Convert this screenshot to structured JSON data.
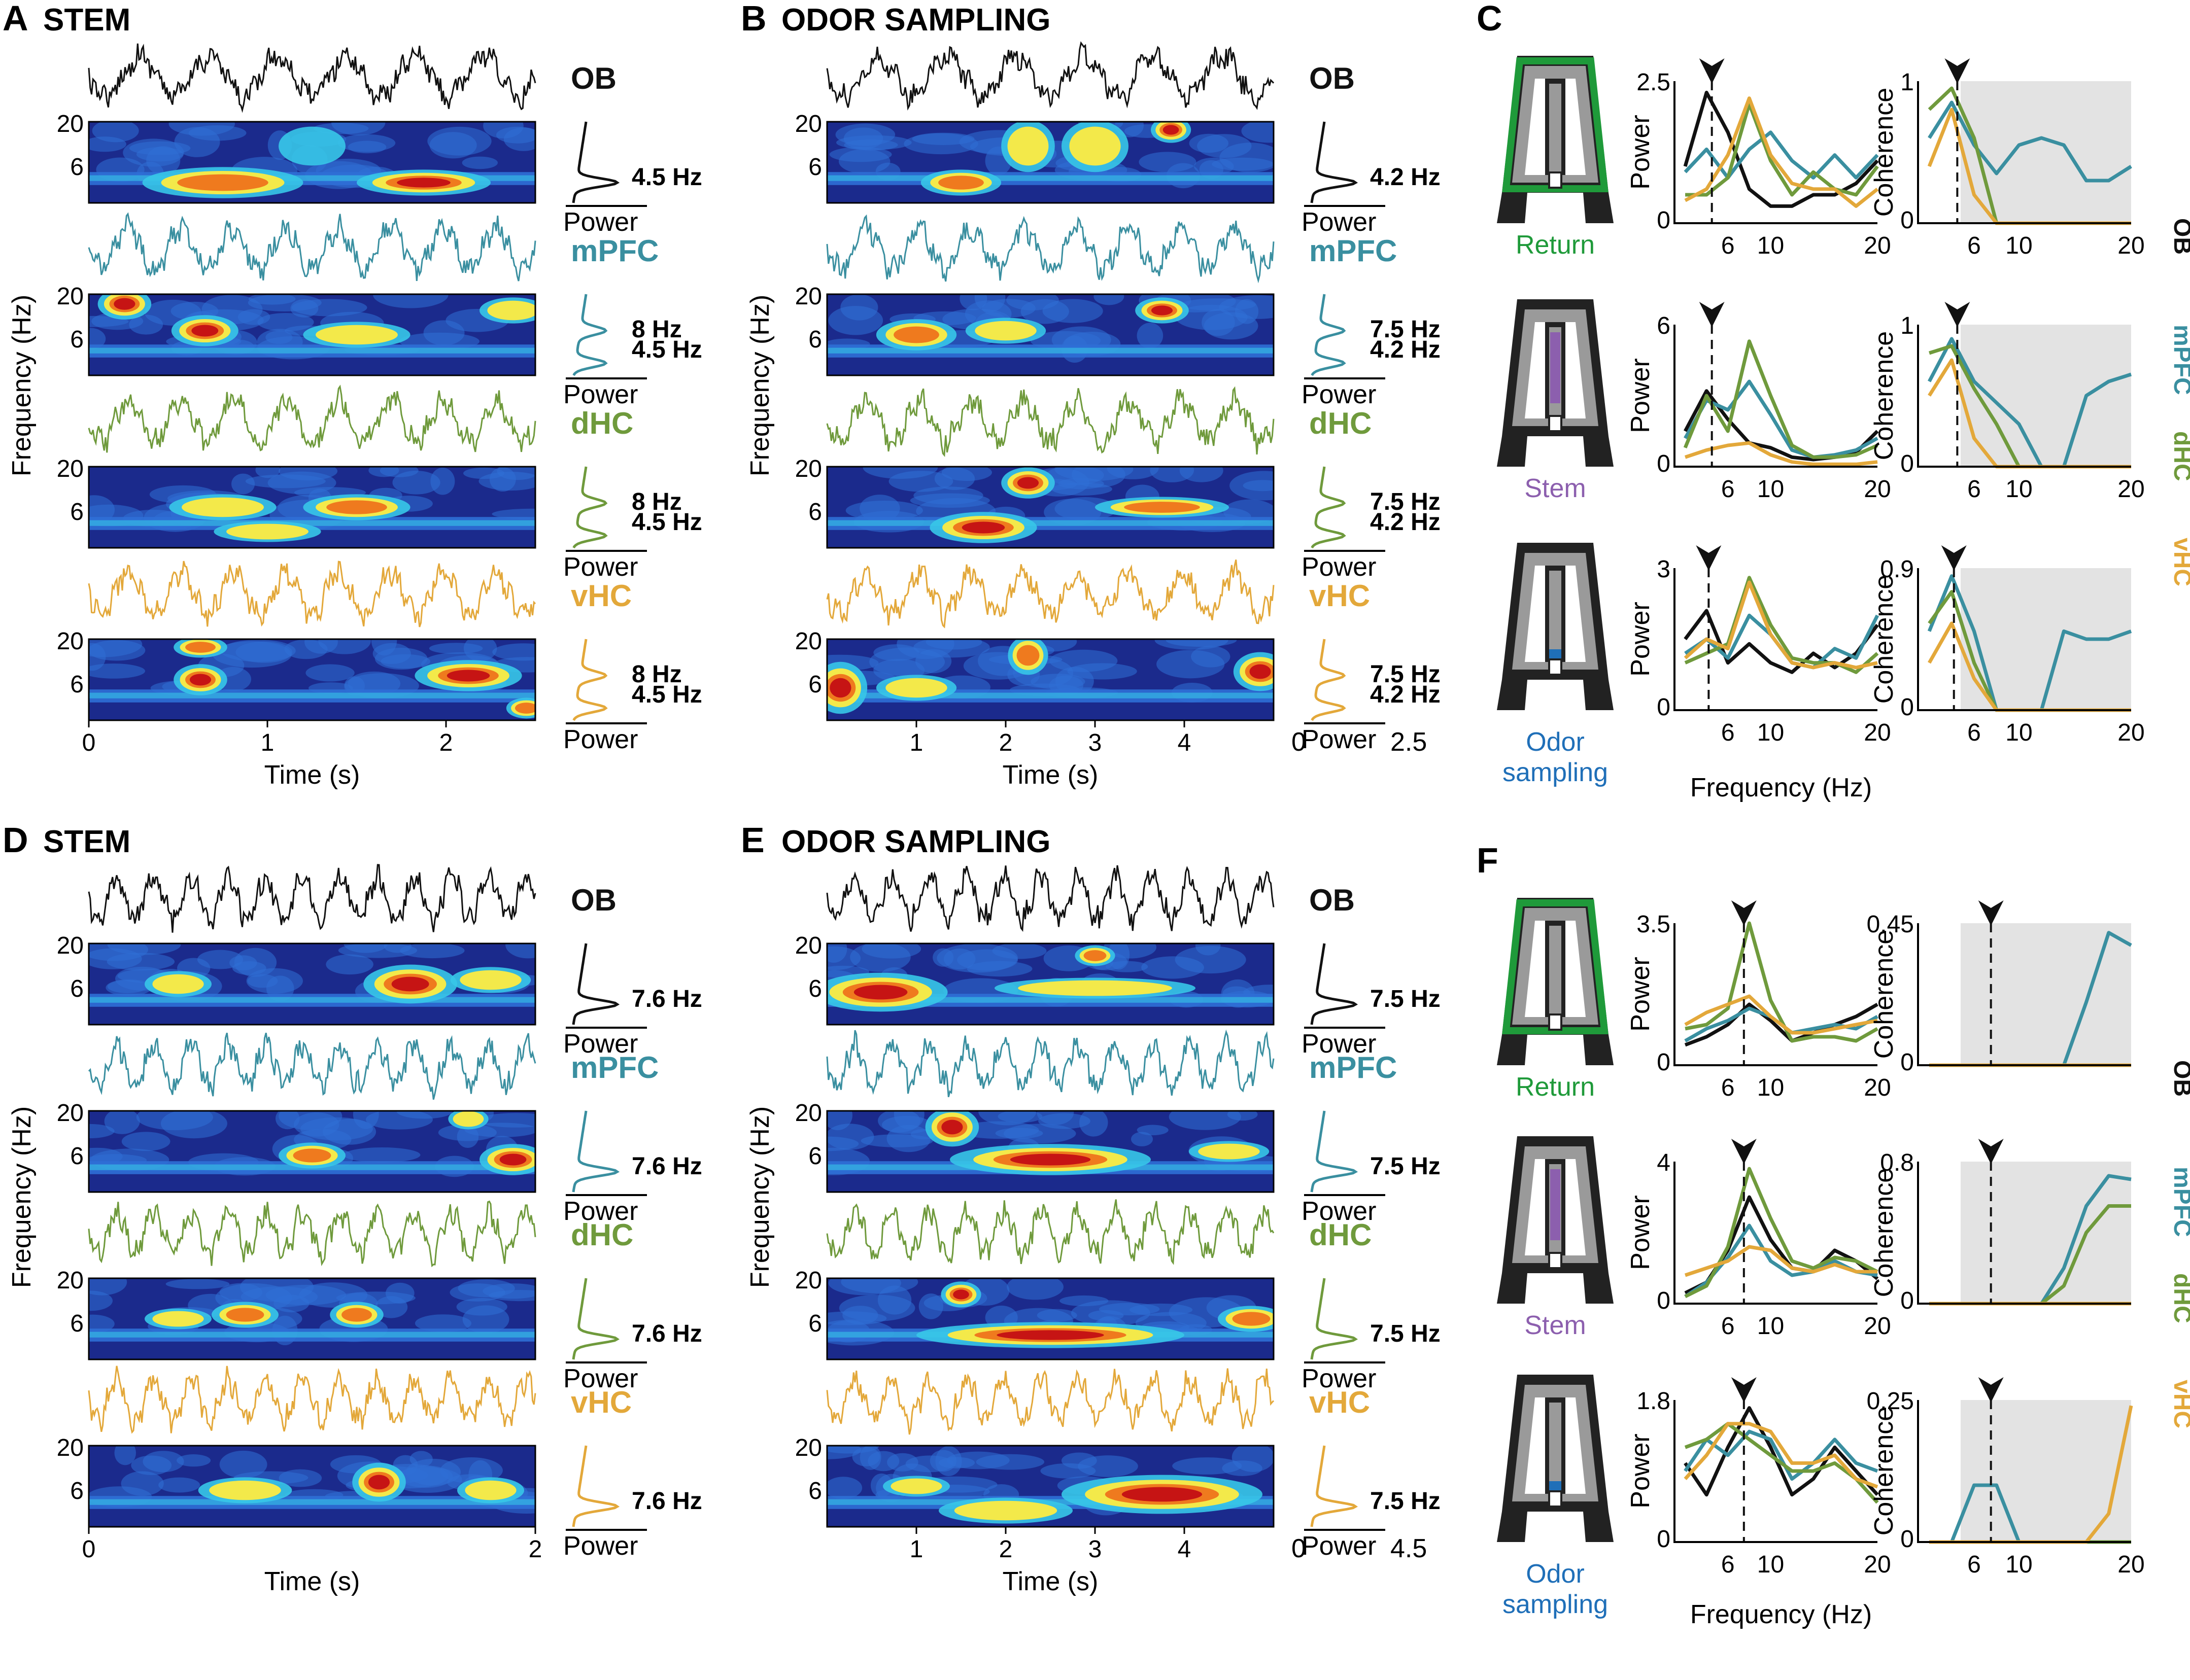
{
  "colors": {
    "OB": "#111111",
    "mPFC": "#3a8fa0",
    "dHC": "#6f9a3c",
    "vHC": "#e3a83a",
    "return_arm": "#1f9a3a",
    "stem_arm": "#8c5fae",
    "port": "#1f6fb8",
    "shade": "#e3e3e3",
    "maze": "#222222",
    "maze_inner": "#9a9a9a",
    "colormap": [
      "#1b2a8c",
      "#2f6fd6",
      "#37c7e8",
      "#f3e94a",
      "#ef7a1e",
      "#c61414",
      "#7a0000"
    ]
  },
  "panels": {
    "A": {
      "letter": "A",
      "title": "STEM",
      "freq_label": "Frequency (Hz)",
      "time_label": "Time (s)",
      "x_ticks": [
        "0",
        "1",
        "2"
      ],
      "y_ticks": [
        "20",
        "6"
      ],
      "regions": [
        "OB",
        "mPFC",
        "dHC",
        "vHC"
      ],
      "peaks": [
        [
          "4.5 Hz"
        ],
        [
          "8 Hz",
          "4.5 Hz"
        ],
        [
          "8 Hz",
          "4.5 Hz"
        ],
        [
          "8 Hz",
          "4.5 Hz"
        ]
      ],
      "power_label": "Power"
    },
    "B": {
      "letter": "B",
      "title": "ODOR SAMPLING",
      "freq_label": "Frequency (Hz)",
      "time_label": "Time (s)",
      "x_ticks": [
        "1",
        "2",
        "3",
        "4"
      ],
      "y_ticks": [
        "20",
        "6"
      ],
      "regions": [
        "OB",
        "mPFC",
        "dHC",
        "vHC"
      ],
      "peaks": [
        [
          "4.2 Hz"
        ],
        [
          "7.5 Hz",
          "4.2 Hz"
        ],
        [
          "7.5 Hz",
          "4.2 Hz"
        ],
        [
          "7.5 Hz",
          "4.2 Hz"
        ]
      ],
      "power_label": "Power",
      "power_axis": [
        "0",
        "2.5"
      ]
    },
    "D": {
      "letter": "D",
      "title": "STEM",
      "freq_label": "Frequency (Hz)",
      "time_label": "Time (s)",
      "x_ticks": [
        "0",
        "2"
      ],
      "y_ticks": [
        "20",
        "6"
      ],
      "regions": [
        "OB",
        "mPFC",
        "dHC",
        "vHC"
      ],
      "peaks": [
        [
          "7.6 Hz"
        ],
        [
          "7.6 Hz"
        ],
        [
          "7.6 Hz"
        ],
        [
          "7.6 Hz"
        ]
      ],
      "power_label": "Power"
    },
    "E": {
      "letter": "E",
      "title": "ODOR SAMPLING",
      "freq_label": "Frequency (Hz)",
      "time_label": "Time (s)",
      "x_ticks": [
        "1",
        "2",
        "3",
        "4"
      ],
      "y_ticks": [
        "20",
        "6"
      ],
      "regions": [
        "OB",
        "mPFC",
        "dHC",
        "vHC"
      ],
      "peaks": [
        [
          "7.5 Hz"
        ],
        [
          "7.5 Hz"
        ],
        [
          "7.5 Hz"
        ],
        [
          "7.5 Hz"
        ]
      ],
      "power_label": "Power",
      "power_axis": [
        "0",
        "4.5"
      ]
    },
    "C": {
      "letter": "C",
      "conditions": [
        "Return",
        "Stem",
        "Odor sampling"
      ],
      "power_ylabel": "Power",
      "coh_ylabel": "Coherence",
      "freq_xlabel": "Frequency (Hz)",
      "x_ticks": [
        "6",
        "10",
        "20"
      ],
      "power_ymax": [
        "2.5",
        "6",
        "3"
      ],
      "coh_ymax": [
        "1",
        "1",
        "0.9"
      ],
      "legend": [
        "OB",
        "mPFC",
        "dHC",
        "vHC"
      ]
    },
    "F": {
      "letter": "F",
      "conditions": [
        "Return",
        "Stem",
        "Odor sampling"
      ],
      "power_ylabel": "Power",
      "coh_ylabel": "Coherence",
      "freq_xlabel": "Frequency (Hz)",
      "x_ticks": [
        "6",
        "10",
        "20"
      ],
      "power_ymax": [
        "3.5",
        "4",
        "1.8"
      ],
      "coh_ymax": [
        "0.45",
        "0.8",
        "0.25"
      ],
      "legend": [
        "OB",
        "mPFC",
        "dHC",
        "vHC"
      ]
    }
  },
  "chart_data": [
    {
      "type": "line",
      "panel": "C",
      "row": "Return",
      "measure": "power",
      "x": [
        2,
        4,
        6,
        8,
        10,
        12,
        14,
        16,
        18,
        20
      ],
      "ylim": [
        0,
        2.5
      ],
      "series": [
        {
          "name": "OB",
          "values": [
            1.0,
            2.3,
            1.6,
            0.6,
            0.3,
            0.3,
            0.5,
            0.5,
            0.7,
            1.1
          ]
        },
        {
          "name": "mPFC",
          "values": [
            0.9,
            1.3,
            0.8,
            1.3,
            1.6,
            1.1,
            0.8,
            1.2,
            0.8,
            1.2
          ]
        },
        {
          "name": "dHC",
          "values": [
            0.5,
            0.5,
            0.8,
            2.1,
            1.1,
            0.5,
            0.9,
            0.6,
            0.5,
            1.0
          ]
        },
        {
          "name": "vHC",
          "values": [
            0.4,
            0.6,
            1.2,
            2.2,
            1.2,
            0.7,
            0.6,
            0.6,
            0.3,
            0.6
          ]
        }
      ],
      "marker_x": 4.5
    },
    {
      "type": "line",
      "panel": "C",
      "row": "Return",
      "measure": "coherence",
      "x": [
        2,
        4,
        6,
        8,
        10,
        12,
        14,
        16,
        18,
        20
      ],
      "ylim": [
        0,
        1
      ],
      "series": [
        {
          "name": "mPFC",
          "values": [
            0.6,
            0.85,
            0.55,
            0.35,
            0.55,
            0.6,
            0.55,
            0.3,
            0.3,
            0.4
          ]
        },
        {
          "name": "dHC",
          "values": [
            0.8,
            0.95,
            0.6,
            0.0,
            0.0,
            0.0,
            0.0,
            0.0,
            0.0,
            0.0
          ]
        },
        {
          "name": "vHC",
          "values": [
            0.4,
            0.8,
            0.2,
            0.0,
            0.0,
            0.0,
            0.0,
            0.0,
            0.0,
            0.0
          ]
        }
      ],
      "marker_x": 4.5
    },
    {
      "type": "line",
      "panel": "C",
      "row": "Stem",
      "measure": "power",
      "x": [
        2,
        4,
        6,
        8,
        10,
        12,
        14,
        16,
        18,
        20
      ],
      "ylim": [
        0,
        6
      ],
      "series": [
        {
          "name": "OB",
          "values": [
            1.5,
            3.2,
            2.0,
            1.0,
            0.8,
            0.4,
            0.3,
            0.4,
            0.6,
            1.5
          ]
        },
        {
          "name": "mPFC",
          "values": [
            1.2,
            2.8,
            2.4,
            3.6,
            2.2,
            0.7,
            0.4,
            0.5,
            0.7,
            1.2
          ]
        },
        {
          "name": "dHC",
          "values": [
            0.8,
            3.0,
            1.5,
            5.3,
            3.0,
            0.9,
            0.4,
            0.4,
            0.5,
            0.9
          ]
        },
        {
          "name": "vHC",
          "values": [
            0.4,
            0.7,
            0.9,
            1.0,
            0.5,
            0.2,
            0.1,
            0.1,
            0.1,
            0.2
          ]
        }
      ],
      "marker_x": 4.5
    },
    {
      "type": "line",
      "panel": "C",
      "row": "Stem",
      "measure": "coherence",
      "x": [
        2,
        4,
        6,
        8,
        10,
        12,
        14,
        16,
        18,
        20
      ],
      "ylim": [
        0,
        1
      ],
      "series": [
        {
          "name": "mPFC",
          "values": [
            0.6,
            0.9,
            0.6,
            0.45,
            0.3,
            0.0,
            0.0,
            0.5,
            0.6,
            0.65
          ]
        },
        {
          "name": "dHC",
          "values": [
            0.8,
            0.85,
            0.55,
            0.3,
            0.0,
            0.0,
            0.0,
            0.0,
            0.0,
            0.0
          ]
        },
        {
          "name": "vHC",
          "values": [
            0.5,
            0.75,
            0.2,
            0.0,
            0.0,
            0.0,
            0.0,
            0.0,
            0.0,
            0.0
          ]
        }
      ],
      "marker_x": 4.5
    },
    {
      "type": "line",
      "panel": "C",
      "row": "Odor sampling",
      "measure": "power",
      "x": [
        2,
        4,
        6,
        8,
        10,
        12,
        14,
        16,
        18,
        20
      ],
      "ylim": [
        0,
        3
      ],
      "series": [
        {
          "name": "OB",
          "values": [
            1.5,
            2.1,
            1.0,
            1.4,
            1.0,
            0.8,
            1.2,
            0.9,
            1.2,
            1.8
          ]
        },
        {
          "name": "mPFC",
          "values": [
            1.2,
            1.5,
            1.1,
            2.0,
            1.6,
            1.0,
            0.9,
            1.3,
            1.1,
            2.0
          ]
        },
        {
          "name": "dHC",
          "values": [
            1.0,
            1.2,
            1.4,
            2.8,
            1.8,
            1.1,
            1.0,
            1.0,
            0.8,
            1.2
          ]
        },
        {
          "name": "vHC",
          "values": [
            1.1,
            1.5,
            1.3,
            2.7,
            1.6,
            1.0,
            0.9,
            1.0,
            0.9,
            1.0
          ]
        }
      ],
      "marker_x": 4.2
    },
    {
      "type": "line",
      "panel": "C",
      "row": "Odor sampling",
      "measure": "coherence",
      "x": [
        2,
        4,
        6,
        8,
        10,
        12,
        14,
        16,
        18,
        20
      ],
      "ylim": [
        0,
        0.9
      ],
      "series": [
        {
          "name": "mPFC",
          "values": [
            0.5,
            0.85,
            0.5,
            0.0,
            0.0,
            0.0,
            0.5,
            0.45,
            0.45,
            0.5
          ]
        },
        {
          "name": "dHC",
          "values": [
            0.55,
            0.75,
            0.3,
            0.0,
            0.0,
            0.0,
            0.0,
            0.0,
            0.0,
            0.0
          ]
        },
        {
          "name": "vHC",
          "values": [
            0.3,
            0.55,
            0.2,
            0.0,
            0.0,
            0.0,
            0.0,
            0.0,
            0.0,
            0.0
          ]
        }
      ],
      "marker_x": 4.2
    },
    {
      "type": "line",
      "panel": "F",
      "row": "Return",
      "measure": "power",
      "x": [
        2,
        4,
        6,
        8,
        10,
        12,
        14,
        16,
        18,
        20
      ],
      "ylim": [
        0,
        3.5
      ],
      "series": [
        {
          "name": "OB",
          "values": [
            0.5,
            0.7,
            1.0,
            1.5,
            1.1,
            0.6,
            0.8,
            1.0,
            1.2,
            1.5
          ]
        },
        {
          "name": "mPFC",
          "values": [
            0.6,
            0.9,
            1.1,
            1.4,
            1.2,
            0.8,
            0.9,
            1.0,
            0.9,
            1.2
          ]
        },
        {
          "name": "dHC",
          "values": [
            0.9,
            1.0,
            1.4,
            3.5,
            1.6,
            0.6,
            0.7,
            0.7,
            0.6,
            0.9
          ]
        },
        {
          "name": "vHC",
          "values": [
            1.0,
            1.3,
            1.5,
            1.7,
            1.2,
            0.8,
            0.8,
            0.9,
            1.0,
            1.1
          ]
        }
      ],
      "marker_x": 7.5
    },
    {
      "type": "line",
      "panel": "F",
      "row": "Return",
      "measure": "coherence",
      "x": [
        2,
        4,
        6,
        8,
        10,
        12,
        14,
        16,
        18,
        20
      ],
      "ylim": [
        0,
        0.45
      ],
      "series": [
        {
          "name": "mPFC",
          "values": [
            0,
            0,
            0,
            0,
            0,
            0,
            0,
            0.2,
            0.42,
            0.38
          ]
        },
        {
          "name": "dHC",
          "values": [
            0,
            0,
            0,
            0,
            0,
            0,
            0,
            0,
            0,
            0
          ]
        },
        {
          "name": "vHC",
          "values": [
            0,
            0,
            0,
            0,
            0,
            0,
            0,
            0,
            0,
            0
          ]
        }
      ],
      "marker_x": 7.5
    },
    {
      "type": "line",
      "panel": "F",
      "row": "Stem",
      "measure": "power",
      "x": [
        2,
        4,
        6,
        8,
        10,
        12,
        14,
        16,
        18,
        20
      ],
      "ylim": [
        0,
        4
      ],
      "series": [
        {
          "name": "OB",
          "values": [
            0.3,
            0.6,
            1.5,
            3.0,
            1.8,
            1.0,
            0.9,
            1.5,
            1.2,
            0.7
          ]
        },
        {
          "name": "mPFC",
          "values": [
            0.2,
            0.6,
            1.3,
            2.2,
            1.2,
            0.8,
            0.9,
            1.2,
            0.9,
            0.8
          ]
        },
        {
          "name": "dHC",
          "values": [
            0.2,
            0.5,
            1.6,
            3.8,
            2.4,
            1.2,
            1.0,
            1.3,
            1.2,
            0.9
          ]
        },
        {
          "name": "vHC",
          "values": [
            0.8,
            1.0,
            1.2,
            1.6,
            1.5,
            1.0,
            0.9,
            1.1,
            0.9,
            0.9
          ]
        }
      ],
      "marker_x": 7.5
    },
    {
      "type": "line",
      "panel": "F",
      "row": "Stem",
      "measure": "coherence",
      "x": [
        2,
        4,
        6,
        8,
        10,
        12,
        14,
        16,
        18,
        20
      ],
      "ylim": [
        0,
        0.8
      ],
      "series": [
        {
          "name": "mPFC",
          "values": [
            0,
            0,
            0,
            0,
            0,
            0,
            0.2,
            0.55,
            0.72,
            0.7
          ]
        },
        {
          "name": "dHC",
          "values": [
            0,
            0,
            0,
            0,
            0,
            0,
            0.1,
            0.4,
            0.55,
            0.55
          ]
        },
        {
          "name": "vHC",
          "values": [
            0,
            0,
            0,
            0,
            0,
            0,
            0,
            0,
            0,
            0
          ]
        }
      ],
      "marker_x": 7.5
    },
    {
      "type": "line",
      "panel": "F",
      "row": "Odor sampling",
      "measure": "power",
      "x": [
        2,
        4,
        6,
        8,
        10,
        12,
        14,
        16,
        18,
        20
      ],
      "ylim": [
        0,
        1.8
      ],
      "series": [
        {
          "name": "OB",
          "values": [
            1.0,
            0.6,
            1.2,
            1.7,
            1.2,
            0.6,
            0.8,
            1.2,
            0.9,
            0.6
          ]
        },
        {
          "name": "mPFC",
          "values": [
            0.9,
            1.3,
            1.1,
            1.4,
            1.3,
            0.8,
            1.0,
            1.3,
            1.0,
            0.9
          ]
        },
        {
          "name": "dHC",
          "values": [
            1.2,
            1.3,
            1.5,
            1.3,
            1.1,
            0.9,
            0.9,
            1.0,
            0.8,
            0.5
          ]
        },
        {
          "name": "vHC",
          "values": [
            0.8,
            1.1,
            1.5,
            1.5,
            1.4,
            1.0,
            1.0,
            1.1,
            0.8,
            0.7
          ]
        }
      ],
      "marker_x": 7.5
    },
    {
      "type": "line",
      "panel": "F",
      "row": "Odor sampling",
      "measure": "coherence",
      "x": [
        2,
        4,
        6,
        8,
        10,
        12,
        14,
        16,
        18,
        20
      ],
      "ylim": [
        0,
        0.25
      ],
      "series": [
        {
          "name": "mPFC",
          "values": [
            0,
            0,
            0.1,
            0.1,
            0,
            0,
            0,
            0,
            0,
            0
          ]
        },
        {
          "name": "dHC",
          "values": [
            0,
            0,
            0,
            0,
            0,
            0,
            0,
            0,
            0,
            0
          ]
        },
        {
          "name": "vHC",
          "values": [
            0,
            0,
            0,
            0,
            0,
            0,
            0,
            0,
            0.05,
            0.24
          ]
        }
      ],
      "marker_x": 7.5
    }
  ]
}
